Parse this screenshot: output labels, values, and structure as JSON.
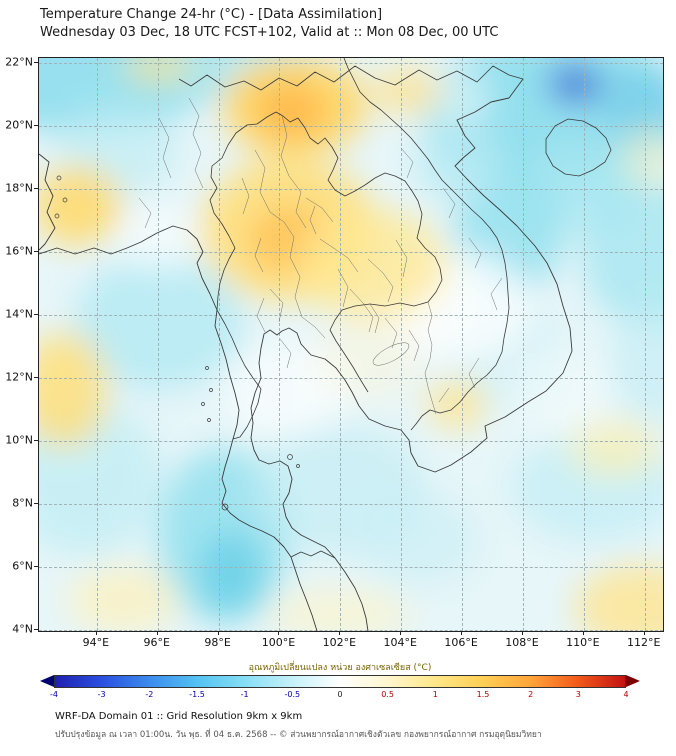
{
  "header": {
    "title": "Temperature Change 24-hr (°C) - [Data Assimilation]",
    "subtitle": "Wednesday 03 Dec, 18 UTC FCST+102, Valid at :: Mon 08 Dec, 00 UTC"
  },
  "chart_data": {
    "type": "heatmap",
    "title": "Temperature Change 24-hr (°C) - [Data Assimilation]",
    "subtitle": "Wednesday 03 Dec, 18 UTC FCST+102, Valid at :: Mon 08 Dec, 00 UTC",
    "x_axis": {
      "unit": "°E",
      "ticks": [
        94,
        96,
        98,
        100,
        102,
        104,
        106,
        108,
        110,
        112
      ],
      "range_deg": [
        92.1,
        112.6
      ]
    },
    "y_axis": {
      "unit": "°N",
      "ticks": [
        22,
        20,
        18,
        16,
        14,
        12,
        10,
        8,
        6,
        4
      ],
      "range_deg": [
        3.98,
        22.16
      ]
    },
    "grid": "dashed gray lines every 2 degrees",
    "colorbar": {
      "label": "อุณหภูมิเปลี่ยนแปลง หน่วย องศาเซลเซียส (°C)",
      "units": "°C",
      "ticks": [
        -4,
        -3,
        -2,
        -1.5,
        -1,
        -0.5,
        0,
        0.5,
        1,
        1.5,
        2,
        3,
        4
      ],
      "tick_colors": {
        "negative": "#0000b4",
        "zero": "#222222",
        "positive": "#b40000"
      },
      "gradient_stops": [
        {
          "pos": 0,
          "color": "#2020b0"
        },
        {
          "pos": 8.3,
          "color": "#2b50e0"
        },
        {
          "pos": 16.7,
          "color": "#3c8ced"
        },
        {
          "pos": 25,
          "color": "#54c2f2"
        },
        {
          "pos": 33.3,
          "color": "#86def5"
        },
        {
          "pos": 41.7,
          "color": "#c6f1f9"
        },
        {
          "pos": 50,
          "color": "#ffffff"
        },
        {
          "pos": 58.3,
          "color": "#fff6cf"
        },
        {
          "pos": 66.7,
          "color": "#ffe788"
        },
        {
          "pos": 75,
          "color": "#ffcf55"
        },
        {
          "pos": 83.3,
          "color": "#ffa63a"
        },
        {
          "pos": 91.7,
          "color": "#f25a1a"
        },
        {
          "pos": 100,
          "color": "#c41212"
        }
      ],
      "arrow_left_color": "#00006e",
      "arrow_right_color": "#7a0000"
    },
    "field_summary": [
      {
        "area": "Northern and central Thailand (16–20°N, 98–103°E)",
        "change_c": "+0.5 to +2 (yellow/orange warming)"
      },
      {
        "area": "Top-center near 100–101°E, 21–22°N",
        "change_c": "+1 to +2"
      },
      {
        "area": "South China Sea near 109–111°E, 20–21.5°N",
        "change_c": "-2 to -3 (strong blue cooling spot)"
      },
      {
        "area": "Vietnam coast and Gulf of Tonkin",
        "change_c": "-0.5 to -1.5"
      },
      {
        "area": "Left edge 94°E near 17–18°N and 11–12°N",
        "change_c": "+0.5 to +1"
      },
      {
        "area": "Cambodia ~105–106°E, 10–11°N",
        "change_c": "+0.5 small warm spot"
      },
      {
        "area": "Peninsular Thailand ~99–101°E, 6–9°N",
        "change_c": "-1 to -1.5 (cyan cooling)"
      },
      {
        "area": "Bottom-right corner ~109–112°E, 4–5°N",
        "change_c": "+0.5 to +1"
      },
      {
        "area": "Most remaining sea areas",
        "change_c": "-0.2 to -0.8 (light cyan)"
      }
    ]
  },
  "footer": {
    "line1": "WRF-DA Domain 01 :: Grid Resolution 9km x 9km",
    "line2": "ปรับปรุงข้อมูล ณ เวลา 01:00น. วัน พุธ. ที่ 04 ธ.ค. 2568 -- © ส่วนพยากรณ์อากาศเชิงตัวเลข กองพยากรณ์อากาศ กรมอุตุนิยมวิทยา"
  }
}
